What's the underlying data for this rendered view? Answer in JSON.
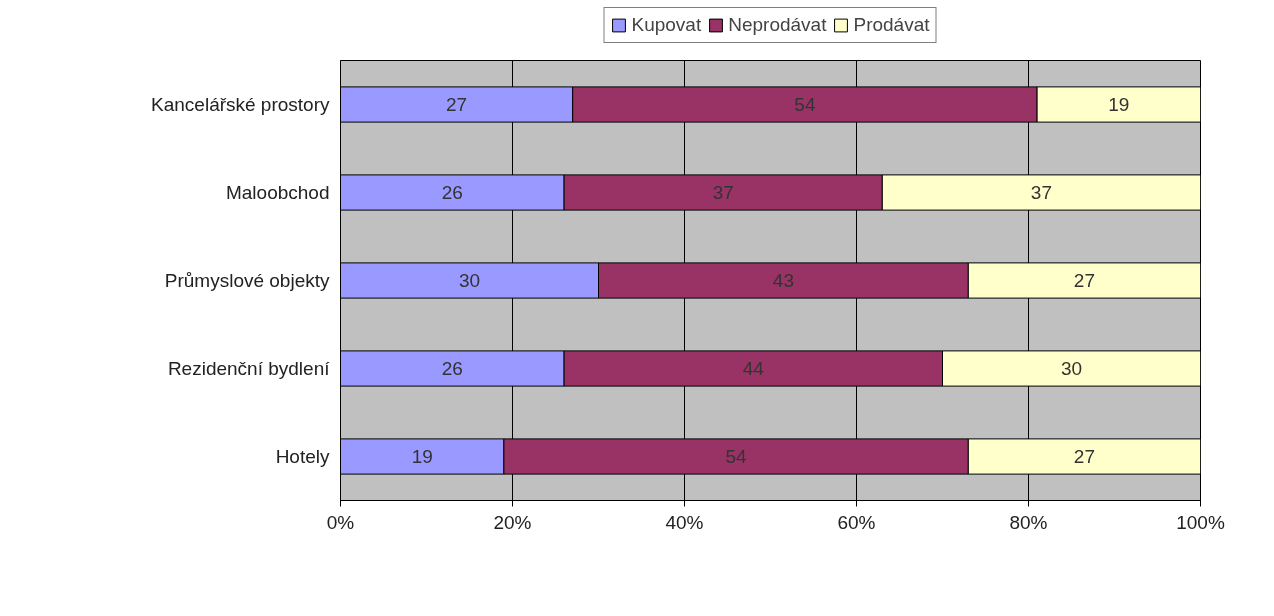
{
  "chart_data": {
    "type": "bar",
    "orientation": "horizontal",
    "stacked": true,
    "categories": [
      "Kancelářské prostory",
      "Maloobchod",
      "Průmyslové objekty",
      "Rezidenční bydlení",
      "Hotely"
    ],
    "series": [
      {
        "name": "Kupovat",
        "color": "#9999ff",
        "values": [
          27,
          26,
          30,
          26,
          19
        ]
      },
      {
        "name": "Neprodávat",
        "color": "#993366",
        "values": [
          54,
          37,
          43,
          44,
          54
        ]
      },
      {
        "name": "Prodávat",
        "color": "#ffffcc",
        "values": [
          19,
          37,
          27,
          30,
          27
        ]
      }
    ],
    "xlim": [
      0,
      100
    ],
    "xticks": [
      {
        "value": 0,
        "label": "0%"
      },
      {
        "value": 20,
        "label": "20%"
      },
      {
        "value": 40,
        "label": "40%"
      },
      {
        "value": 60,
        "label": "60%"
      },
      {
        "value": 80,
        "label": "80%"
      },
      {
        "value": 100,
        "label": "100%"
      }
    ],
    "grid": "x",
    "legend": "top",
    "data_labels": true
  }
}
